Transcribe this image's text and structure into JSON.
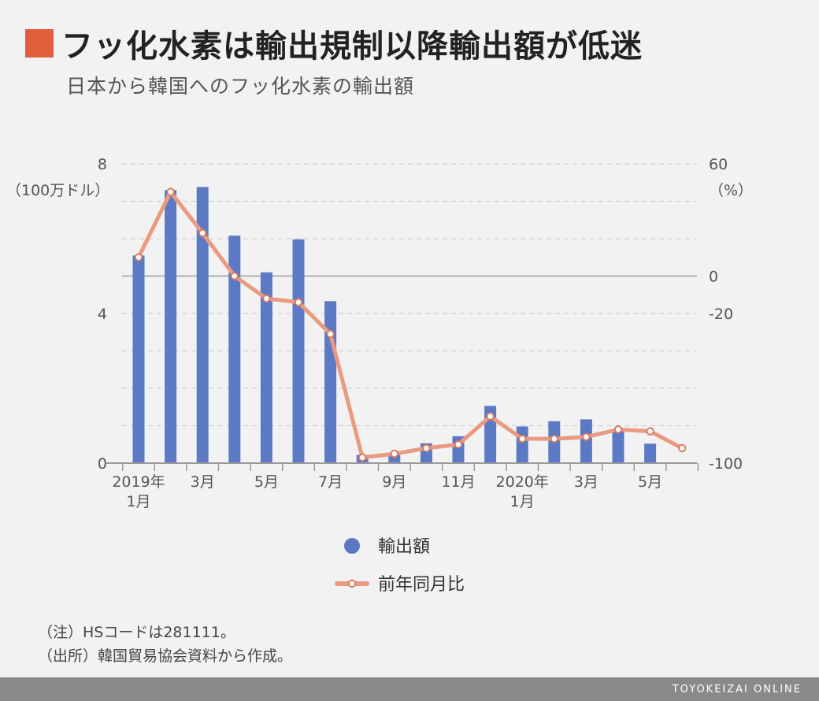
{
  "header": {
    "title": "フッ化水素は輸出規制以降輸出額が低迷",
    "subtitle": "日本から韓国へのフッ化水素の輸出額",
    "marker_color": "#e0603c"
  },
  "chart_data": {
    "type": "bar+line",
    "categories": [
      "2019年1月",
      "2月",
      "3月",
      "4月",
      "5月",
      "6月",
      "7月",
      "8月",
      "9月",
      "10月",
      "11月",
      "12月",
      "2020年1月",
      "2月",
      "3月",
      "4月",
      "5月",
      "6月"
    ],
    "x_tick_labels": [
      {
        "index": 0,
        "line1": "2019年",
        "line2": "1月"
      },
      {
        "index": 2,
        "line1": "3月"
      },
      {
        "index": 4,
        "line1": "5月"
      },
      {
        "index": 6,
        "line1": "7月"
      },
      {
        "index": 8,
        "line1": "9月"
      },
      {
        "index": 10,
        "line1": "11月"
      },
      {
        "index": 12,
        "line1": "2020年",
        "line2": "1月"
      },
      {
        "index": 14,
        "line1": "3月"
      },
      {
        "index": 16,
        "line1": "5月"
      }
    ],
    "left_axis": {
      "unit": "（100万ドル）",
      "ticks": [
        "0",
        "4",
        "8"
      ],
      "ylim": [
        0,
        8
      ]
    },
    "right_axis": {
      "unit": "（%）",
      "ticks": [
        "60",
        "0",
        "-20",
        "-100"
      ],
      "ylim": [
        -100,
        60
      ]
    },
    "series": [
      {
        "name": "輸出額",
        "type": "bar",
        "axis": "left",
        "color": "#5b79c4",
        "values": [
          5.55,
          7.3,
          7.38,
          6.08,
          5.1,
          5.98,
          4.33,
          0.22,
          0.22,
          0.53,
          0.72,
          1.53,
          0.98,
          1.12,
          1.17,
          0.86,
          0.52,
          null
        ]
      },
      {
        "name": "前年同月比",
        "type": "line",
        "axis": "right",
        "color": "#e99a80",
        "values": [
          10,
          45,
          23,
          0,
          -12,
          -14,
          -31,
          -97,
          -95,
          -92,
          -90,
          -75,
          -87,
          -87,
          -86,
          -82,
          -83,
          -92
        ]
      }
    ],
    "grid": true
  },
  "notes": [
    "（注）HSコードは281111。",
    "（出所）韓国貿易協会資料から作成。"
  ],
  "footer": {
    "text": "TOYOKEIZAI ONLINE"
  }
}
